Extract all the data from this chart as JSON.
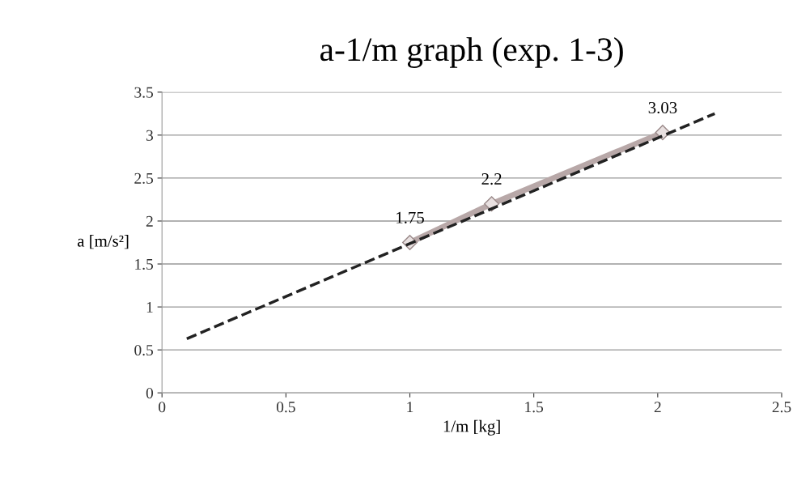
{
  "chart_data": {
    "type": "line",
    "title": "a-1/m graph (exp. 1-3)",
    "xlabel": "1/m [kg]",
    "ylabel": "a [m/s²]",
    "x": [
      1.0,
      1.33,
      2.02
    ],
    "series": [
      {
        "color": "#b8a8a8",
        "values": [
          1.75,
          2.2,
          3.03
        ],
        "marker": "diamond",
        "line_style": "solid",
        "data_labels": true
      },
      {
        "type": "line",
        "x": [
          0.1,
          2.23
        ],
        "color": "#222222",
        "values": [
          0.63,
          3.25
        ],
        "marker": "none",
        "line_style": "dashed"
      }
    ],
    "xlim": [
      0,
      2.5
    ],
    "xticks": [
      0,
      0.5,
      1,
      1.5,
      2,
      2.5
    ],
    "ylim": [
      0,
      3.5
    ],
    "yticks": [
      0,
      0.5,
      1,
      1.5,
      2,
      2.5,
      3,
      3.5
    ],
    "grid": "y"
  }
}
